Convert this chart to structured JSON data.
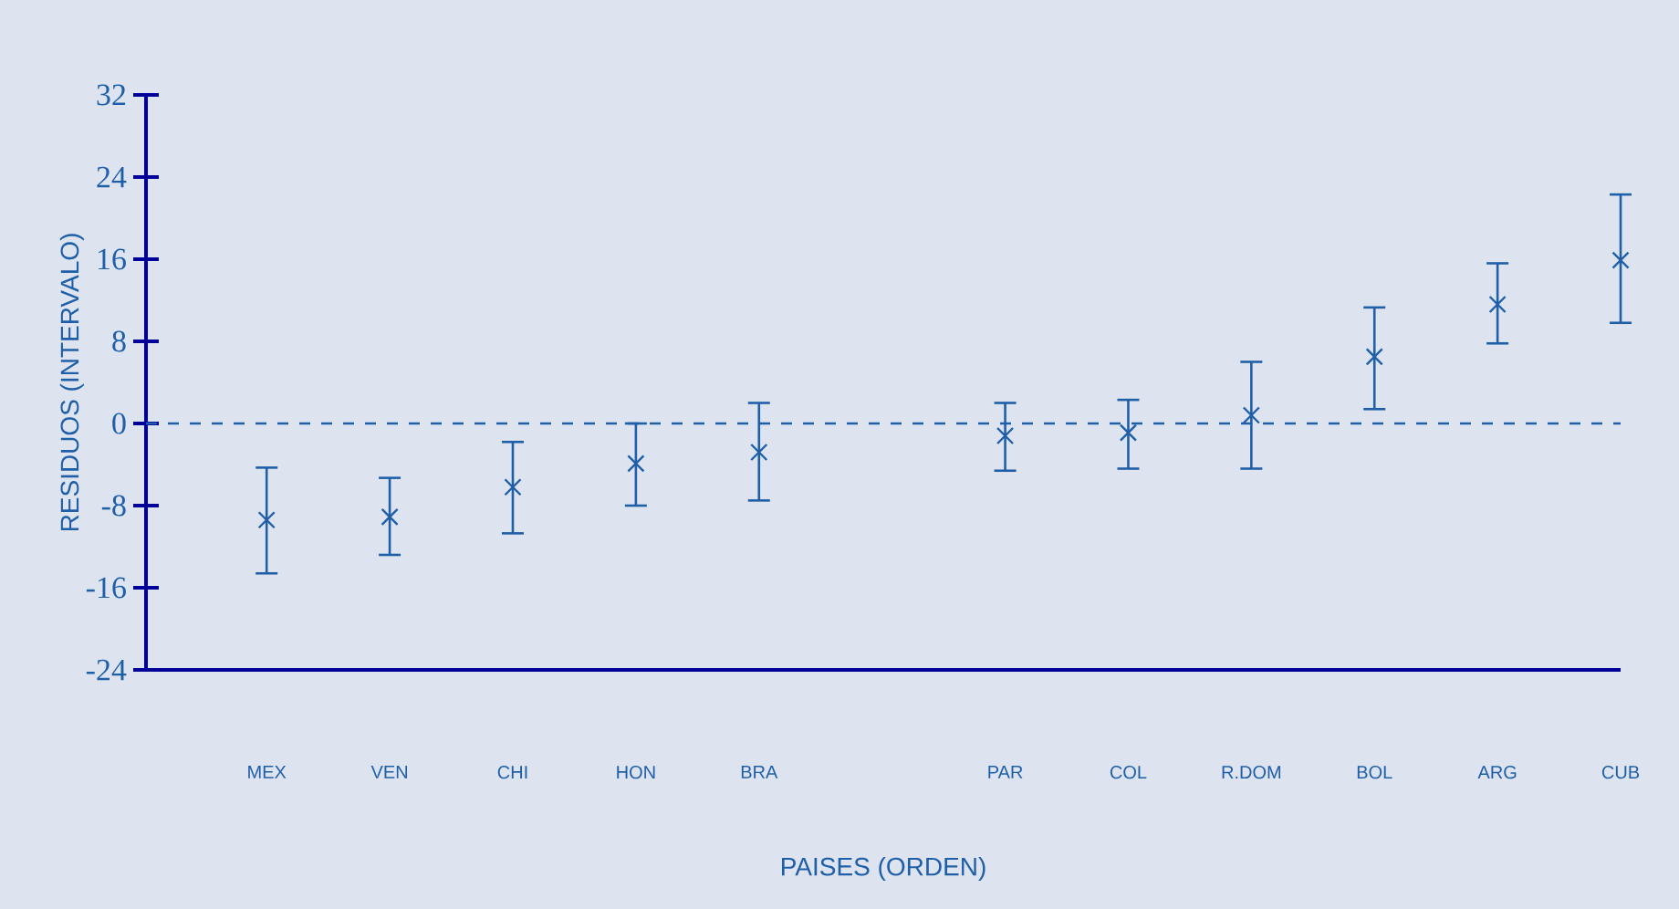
{
  "chart_data": {
    "type": "scatter",
    "xlabel": "PAISES (ORDEN)",
    "ylabel": "RESIDUOS (INTERVALO)",
    "categories": [
      "MEX",
      "VEN",
      "CHI",
      "HON",
      "BRA",
      null,
      "PAR",
      "COL",
      "R.DOM",
      "BOL",
      "ARG",
      "CUB"
    ],
    "series": [
      {
        "color": "#1f5fa8",
        "values": [
          -9.4,
          -9.1,
          -6.2,
          -3.9,
          -2.8,
          null,
          -1.2,
          -0.9,
          0.8,
          6.5,
          11.6,
          15.9
        ],
        "errors": [
          [
            -14.6,
            -4.3
          ],
          [
            -12.8,
            -5.3
          ],
          [
            -10.7,
            -1.8
          ],
          [
            -8.0,
            0.0
          ],
          [
            -7.5,
            2.0
          ],
          null,
          [
            -4.6,
            2.0
          ],
          [
            -4.4,
            2.3
          ],
          [
            -4.4,
            6.0
          ],
          [
            1.4,
            11.3
          ],
          [
            7.8,
            15.6
          ],
          [
            9.8,
            22.3
          ]
        ]
      }
    ],
    "ylim": [
      -24,
      32
    ],
    "yticks": [
      -24,
      -16,
      -8,
      0,
      8,
      16,
      24,
      32
    ],
    "marker": "cross",
    "ref_lines": [
      {
        "axis": "y",
        "value": 0,
        "color": "#1f5fa8",
        "line_style": "dashed"
      }
    ]
  }
}
